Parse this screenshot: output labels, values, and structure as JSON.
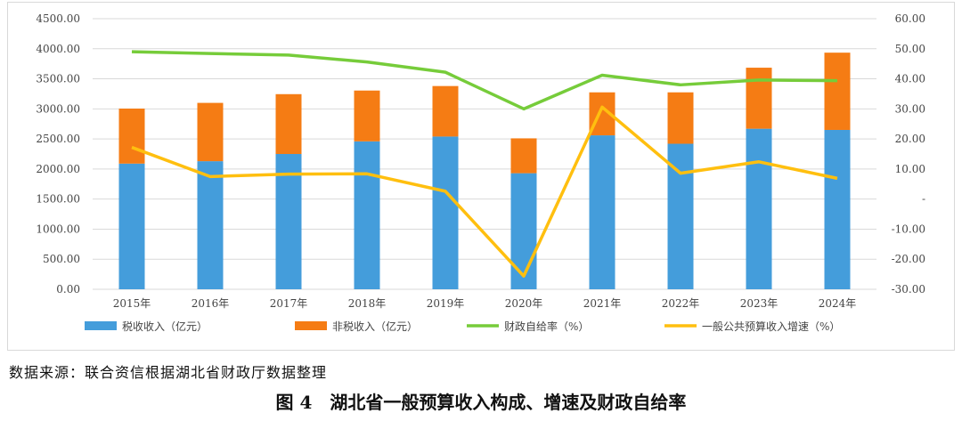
{
  "source_text": "数据来源：联合资信根据湖北省财政厅数据整理",
  "caption": "图 4　湖北省一般预算收入构成、增速及财政自给率",
  "colors": {
    "tax": "#449ddb",
    "nontax": "#f57c14",
    "self_sufficiency": "#76cc3a",
    "growth": "#ffbf0f",
    "grid": "#d9d9d9",
    "axis_text": "#444444"
  },
  "chart_data": {
    "type": "bar",
    "stacked": true,
    "categories": [
      "2015年",
      "2016年",
      "2017年",
      "2018年",
      "2019年",
      "2020年",
      "2021年",
      "2022年",
      "2023年",
      "2024年"
    ],
    "series": [
      {
        "name": "税收收入（亿元）",
        "type": "bar",
        "axis": "left",
        "values": [
          2090,
          2130,
          2250,
          2460,
          2540,
          1930,
          2560,
          2420,
          2670,
          2650
        ]
      },
      {
        "name": "非税收入（亿元）",
        "type": "bar",
        "axis": "left",
        "values": [
          915,
          970,
          995,
          845,
          840,
          580,
          715,
          855,
          1015,
          1285
        ]
      },
      {
        "name": "财政自给率（%）",
        "type": "line",
        "axis": "right",
        "values": [
          49.0,
          48.4,
          47.9,
          45.6,
          42.2,
          30.0,
          41.2,
          38.0,
          39.6,
          39.4
        ]
      },
      {
        "name": "一般公共预算收入增速（%）",
        "type": "line",
        "axis": "right",
        "values": [
          17.2,
          7.5,
          8.3,
          8.4,
          2.6,
          -25.6,
          30.6,
          8.6,
          12.4,
          6.9
        ]
      }
    ],
    "y_left": {
      "range": [
        0,
        4500
      ],
      "ticks": [
        "0.00",
        "500.00",
        "1000.00",
        "1500.00",
        "2000.00",
        "2500.00",
        "3000.00",
        "3500.00",
        "4000.00",
        "4500.00"
      ]
    },
    "y_right": {
      "range": [
        -30,
        60
      ],
      "ticks": [
        "-30.00",
        "-20.00",
        "-10.00",
        "-",
        "10.00",
        "20.00",
        "30.00",
        "40.00",
        "50.00",
        "60.00"
      ]
    },
    "grid": true,
    "legend_position": "bottom"
  }
}
